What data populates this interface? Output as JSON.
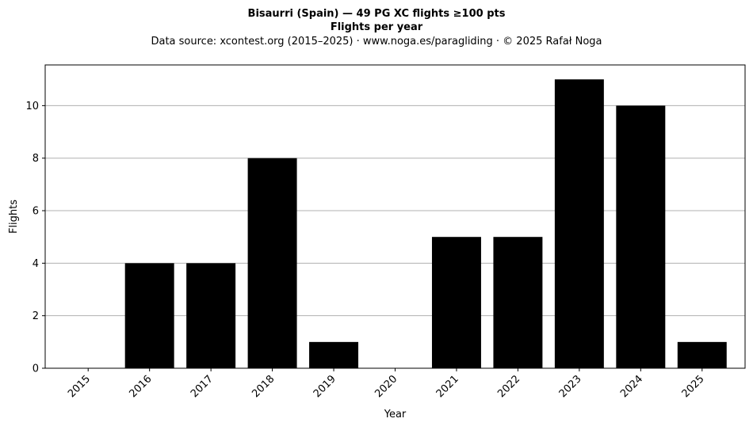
{
  "chart_data": {
    "type": "bar",
    "title": "Bisaurri (Spain)  —  49 PG XC flights ≥100 pts",
    "subtitle": "Flights per year",
    "source_note": "Data source: xcontest.org (2015–2025)  ·  www.noga.es/paragliding  ·  © 2025 Rafał Noga",
    "xlabel": "Year",
    "ylabel": "Flights",
    "categories": [
      "2015",
      "2016",
      "2017",
      "2018",
      "2019",
      "2020",
      "2021",
      "2022",
      "2023",
      "2024",
      "2025"
    ],
    "values": [
      0,
      4,
      4,
      8,
      1,
      0,
      5,
      5,
      11,
      10,
      1
    ],
    "ylim": [
      0,
      11.55
    ],
    "yticks": [
      0,
      2,
      4,
      6,
      8,
      10
    ],
    "grid": "horizontal",
    "bar_color": "#000000",
    "grid_color": "#b0b0b0",
    "x_tick_rotation_deg": 45
  }
}
